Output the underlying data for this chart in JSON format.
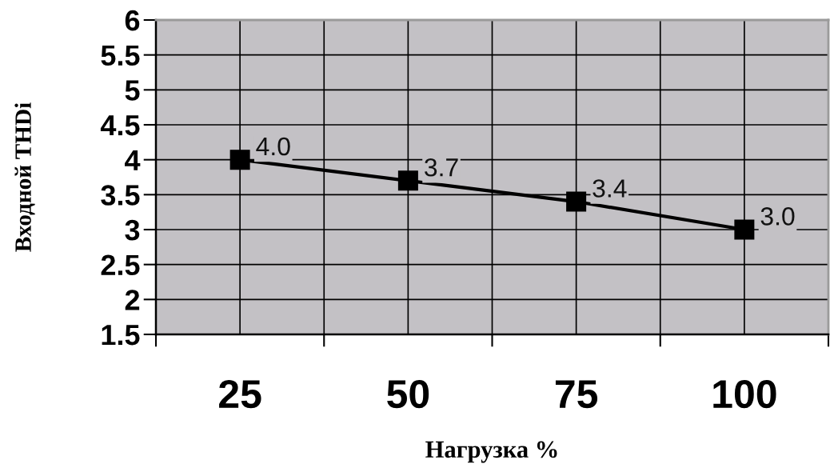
{
  "chart_data": {
    "type": "line",
    "xlabel": "Нагрузка %",
    "ylabel": "Входной THDi",
    "categories": [
      "25",
      "50",
      "75",
      "100"
    ],
    "series": [
      {
        "color": "#000000",
        "values": [
          4.0,
          3.7,
          3.4,
          3.0
        ],
        "value_labels": [
          "4.0",
          "3.7",
          "3.4",
          "3.0"
        ]
      }
    ],
    "ylim": [
      1.5,
      6
    ],
    "yticks": [
      1.5,
      2,
      2.5,
      3,
      3.5,
      4,
      4.5,
      5,
      5.5,
      6
    ],
    "grid": true,
    "marker": "square",
    "line_style": "solid"
  }
}
